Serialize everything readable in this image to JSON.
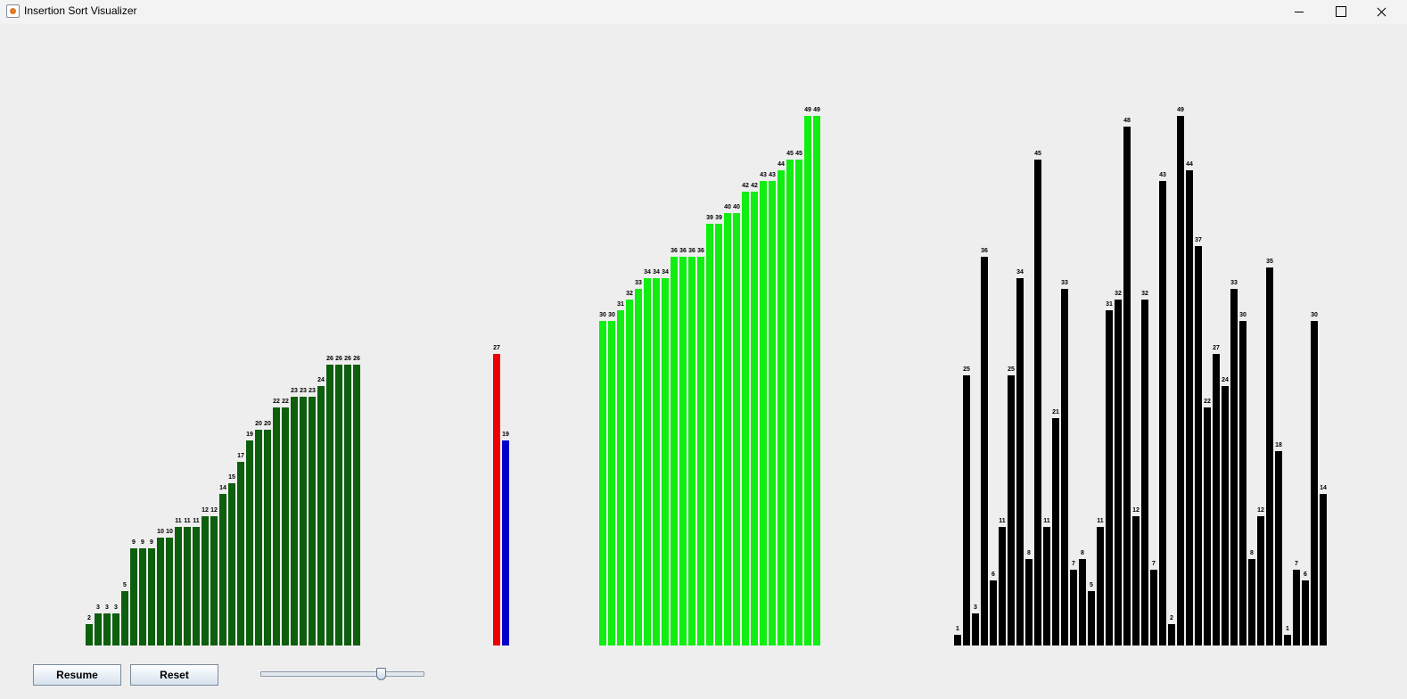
{
  "window": {
    "title": "Insertion Sort Visualizer"
  },
  "controls": {
    "resume_label": "Resume",
    "reset_label": "Reset",
    "speed_slider_value": 0.75
  },
  "colors": {
    "sorted": "#0d5e0d",
    "key": "#ee0000",
    "compare": "#0000cc",
    "shifted": "#11ee11",
    "unsorted": "#000000"
  },
  "bars": {
    "sorted_group": [
      2,
      3,
      3,
      3,
      5,
      9,
      9,
      9,
      10,
      10,
      11,
      11,
      11,
      12,
      12,
      14,
      15,
      17,
      19,
      20,
      20,
      22,
      22,
      23,
      23,
      23,
      24,
      26,
      26,
      26,
      26
    ],
    "active_group": [
      27,
      19
    ],
    "shifted_group": [
      30,
      30,
      31,
      32,
      33,
      34,
      34,
      34,
      36,
      36,
      36,
      36,
      39,
      39,
      40,
      40,
      42,
      42,
      43,
      43,
      44,
      45,
      45,
      49,
      49
    ],
    "unsorted_group": [
      1,
      25,
      3,
      36,
      6,
      11,
      25,
      34,
      8,
      45,
      11,
      21,
      33,
      7,
      8,
      5,
      11,
      31,
      32,
      48,
      12,
      32,
      7,
      43,
      2,
      49,
      44,
      37,
      22,
      27,
      24,
      33,
      30,
      8,
      12,
      35,
      18,
      1,
      7,
      6,
      30,
      14
    ]
  }
}
